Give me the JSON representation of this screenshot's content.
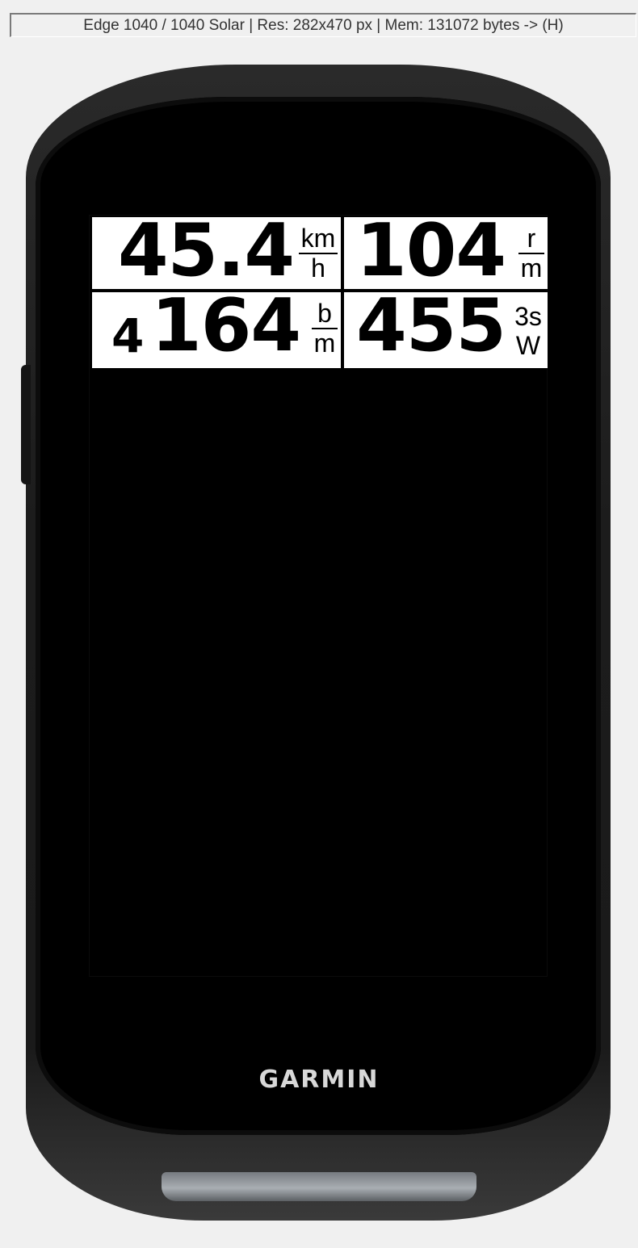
{
  "simulator": {
    "status": "Edge 1040 / 1040 Solar | Res: 282x470 px | Mem: 131072 bytes -> (H)"
  },
  "device": {
    "brand": "GARMIN"
  },
  "fields": {
    "speed": {
      "value": "45.4",
      "unit_top": "km",
      "unit_bottom": "h"
    },
    "cadence": {
      "value": "104",
      "unit_top": "r",
      "unit_bottom": "m"
    },
    "heart_rate": {
      "zone": "4",
      "value": "164",
      "unit_top": "b",
      "unit_bottom": "m"
    },
    "power": {
      "value": "455",
      "unit_top": "3s",
      "unit_bottom": "W"
    }
  }
}
